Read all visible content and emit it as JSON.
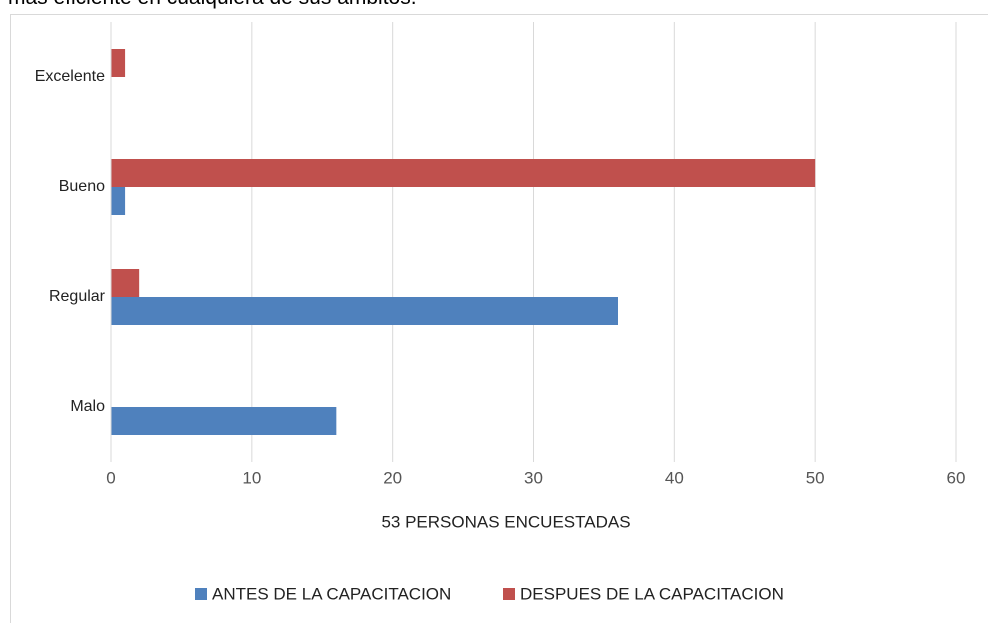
{
  "caption": "más eficiente en cualquiera de sus ámbitos.",
  "chart_data": {
    "type": "hbar",
    "xlabel": "53 PERSONAS ENCUESTADAS",
    "categories": [
      "Malo",
      "Regular",
      "Bueno",
      "Excelente"
    ],
    "series": [
      {
        "name": "ANTES DE LA CAPACITACION",
        "color": "#4f81bd",
        "values": [
          16,
          36,
          1,
          0
        ]
      },
      {
        "name": "DESPUES DE LA CAPACITACION",
        "color": "#c0504d",
        "values": [
          0,
          2,
          50,
          1
        ]
      }
    ],
    "xlim": [
      0,
      60
    ],
    "xticks": [
      0,
      10,
      20,
      30,
      40,
      50,
      60
    ],
    "grid": true,
    "legend": "bottom"
  }
}
